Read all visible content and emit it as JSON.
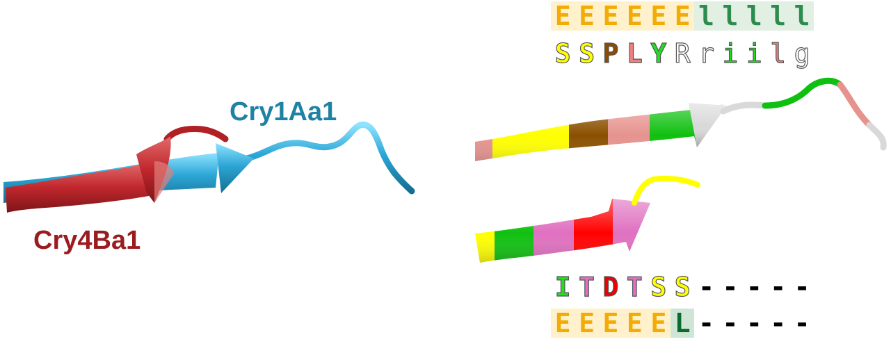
{
  "labels": {
    "left_top": {
      "text": "Cry1Aa1",
      "color": "#1f82a4"
    },
    "left_bottom": {
      "text": "Cry4Ba1",
      "color": "#9b1c1f"
    }
  },
  "sequences": {
    "top_ss": {
      "chars": [
        "E",
        "E",
        "E",
        "E",
        "E",
        "E",
        "l",
        "l",
        "l",
        "l",
        "l"
      ],
      "colors": [
        "#f3ac05",
        "#f3ac05",
        "#f3ac05",
        "#f3ac05",
        "#f3ac05",
        "#f3ac05",
        "#2e8b4e",
        "#2e8b4e",
        "#2e8b4e",
        "#2e8b4e",
        "#2e8b4e"
      ],
      "bgs": [
        "#fff1cc",
        "#fff1cc",
        "#fff1cc",
        "#fff1cc",
        "#fff1cc",
        "#fff1cc",
        "#e2f0e4",
        "#e2f0e4",
        "#e2f0e4",
        "#e2f0e4",
        "#e2f0e4"
      ]
    },
    "top_aa": {
      "chars": [
        "S",
        "S",
        "P",
        "L",
        "Y",
        "R",
        "r",
        "i",
        "i",
        "l",
        "g"
      ],
      "colors": [
        "#ffff00",
        "#ffff00",
        "#8b4b00",
        "#f08080",
        "#22dd22",
        "#ffffff",
        "#ffffff",
        "#22dd22",
        "#22dd22",
        "#f08080",
        "#ffffff"
      ],
      "bgs": [
        "",
        "",
        "",
        "",
        "",
        "",
        "",
        "",
        "",
        "",
        ""
      ]
    },
    "bottom_aa": {
      "chars": [
        "I",
        "T",
        "D",
        "T",
        "S",
        "S",
        "-",
        "-",
        "-",
        "-",
        "-"
      ],
      "colors": [
        "#22dd22",
        "#e070c0",
        "#ee0000",
        "#e070c0",
        "#ffff00",
        "#ffff00",
        "#000000",
        "#000000",
        "#000000",
        "#000000",
        "#000000"
      ],
      "bgs": [
        "",
        "",
        "",
        "",
        "",
        "",
        "",
        "",
        "",
        "",
        ""
      ]
    },
    "bottom_ss": {
      "chars": [
        "E",
        "E",
        "E",
        "E",
        "E",
        "L",
        "-",
        "-",
        "-",
        "-",
        "-"
      ],
      "colors": [
        "#f3ac05",
        "#f3ac05",
        "#f3ac05",
        "#f3ac05",
        "#f3ac05",
        "#0b6a2e",
        "#000000",
        "#000000",
        "#000000",
        "#000000",
        "#000000"
      ],
      "bgs": [
        "#fff1cc",
        "#fff1cc",
        "#fff1cc",
        "#fff1cc",
        "#fff1cc",
        "#cfe6d6",
        "",
        "",
        "",
        "",
        ""
      ]
    }
  },
  "ribbon_colors": {
    "cry1aa1": "#2a9fd0",
    "cry4ba1": "#c0272d",
    "seg_yellow": "#ffff00",
    "seg_brown": "#8b5000",
    "seg_pink": "#e6938e",
    "seg_green": "#10c010",
    "seg_white": "#d9d9d9",
    "seg_magenta": "#e070c0",
    "seg_red": "#ff0000"
  }
}
